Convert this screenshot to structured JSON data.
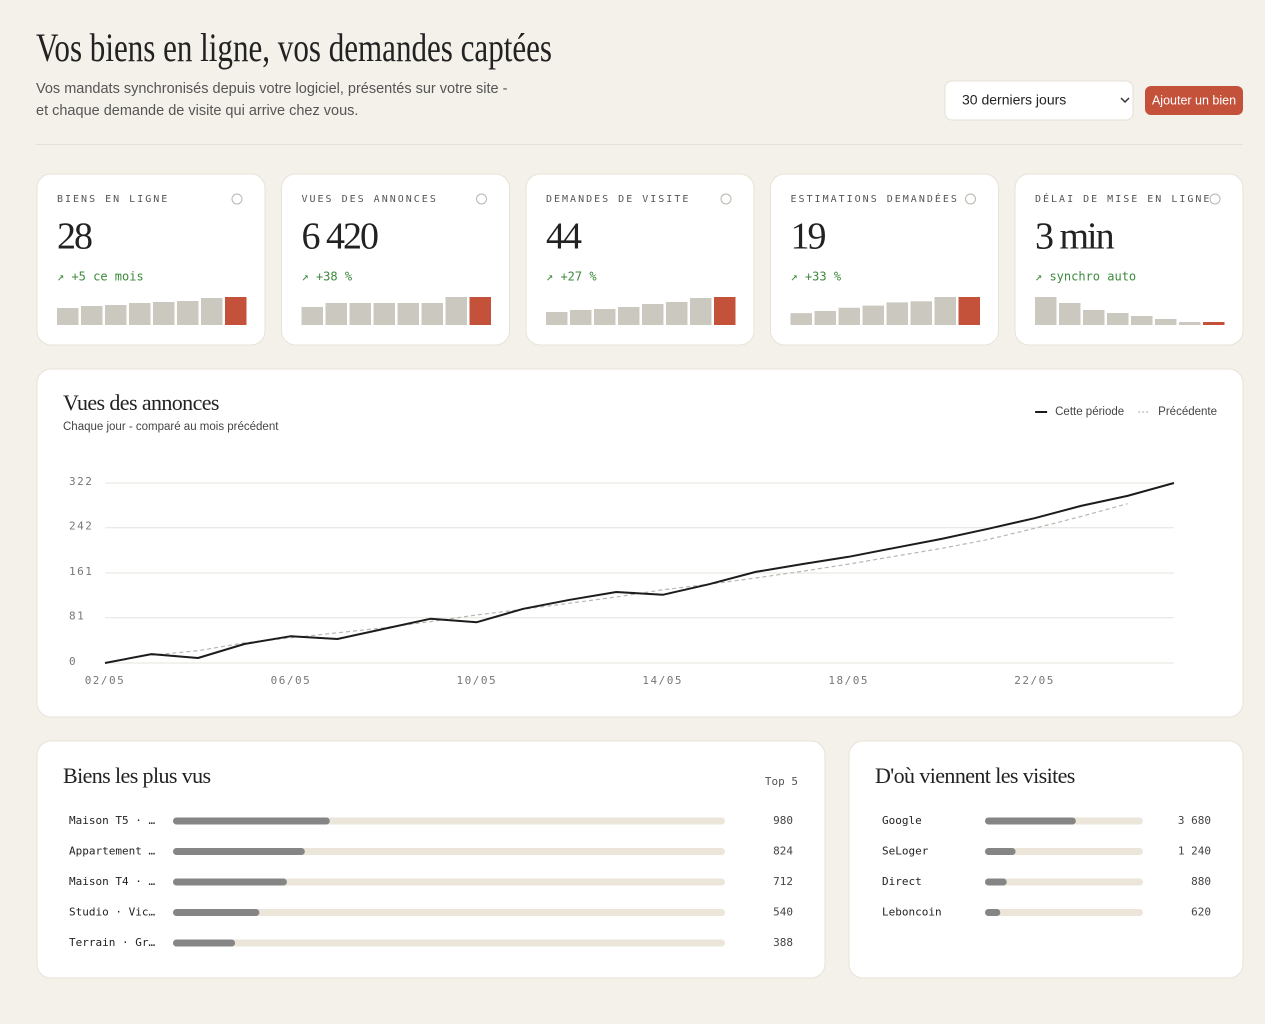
{
  "header": {
    "title": "Vos biens en ligne, vos demandes captées",
    "subtitle": "Vos mandats synchronisés depuis votre logiciel, présentés sur votre site - et chaque demande de visite qui arrive chez vous.",
    "period": "30 derniers jours",
    "button": "Ajouter un bien"
  },
  "kpis": [
    {
      "label": "BIENS EN LIGNE",
      "value": "28",
      "delta": "↗ +5 ce mois",
      "spark": [
        17,
        19,
        20,
        22,
        23,
        24,
        27,
        28
      ]
    },
    {
      "label": "VUES DES ANNONCES",
      "value": "6 420",
      "delta": "↗ +38 %",
      "spark": [
        18,
        22,
        22,
        22,
        22,
        22,
        28,
        28
      ]
    },
    {
      "label": "DEMANDES DE VISITE",
      "value": "44",
      "delta": "↗ +27 %",
      "spark": [
        13,
        15,
        16,
        18,
        21,
        23,
        27,
        28
      ]
    },
    {
      "label": "ESTIMATIONS DEMANDÉES",
      "value": "19",
      "delta": "↗ +33 %",
      "spark": [
        11,
        13,
        16,
        18,
        21,
        22,
        26,
        26
      ]
    },
    {
      "label": "DÉLAI DE MISE EN LIGNE",
      "value": "3 min",
      "delta": "↗ synchro auto",
      "spark": [
        28,
        22,
        15,
        12,
        9,
        6,
        3,
        3
      ]
    }
  ],
  "chart_data": [
    {
      "type": "line",
      "title": "Vues des annonces",
      "subtitle": "Chaque jour - comparé au mois précédent",
      "categories": [
        "02/05",
        null,
        null,
        null,
        "06/05",
        null,
        null,
        null,
        "10/05",
        null,
        null,
        null,
        "14/05",
        null,
        null,
        null,
        "18/05",
        null,
        null,
        null,
        "22/05",
        null,
        null,
        null
      ],
      "series": [
        {
          "name": "Cette période",
          "color": "#1c1c1c",
          "dashed": false,
          "values": [
            0,
            16,
            9,
            34,
            48,
            43,
            61,
            79,
            73,
            97,
            113,
            127,
            122,
            141,
            163,
            177,
            190,
            206,
            222,
            240,
            259,
            281,
            299,
            322
          ]
        },
        {
          "name": "Précédente",
          "color": "#b8b6b0",
          "dashed": true,
          "values": [
            null,
            14,
            22,
            36,
            45,
            54,
            63,
            74,
            86,
            96,
            107,
            118,
            131,
            141,
            152,
            164,
            177,
            191,
            205,
            221,
            241,
            262,
            285,
            null
          ]
        }
      ],
      "ylim": [
        0,
        322
      ],
      "yticks": [
        0,
        81,
        161,
        242,
        322
      ],
      "grid": true,
      "legend": "top-right"
    },
    {
      "type": "hbar",
      "title": "Biens les plus vus",
      "badge": "Top 5",
      "categories": [
        "Maison T5 · …",
        "Appartement …",
        "Maison T4 · …",
        "Studio · Vic…",
        "Terrain · Gr…"
      ],
      "values": [
        980,
        824,
        712,
        540,
        388
      ],
      "xlim": [
        0,
        3450
      ],
      "color": "#858585"
    },
    {
      "type": "hbar",
      "title": "D'où viennent les visites",
      "categories": [
        "Google",
        "SeLoger",
        "Direct",
        "Leboncoin"
      ],
      "values": [
        3680,
        1240,
        880,
        620
      ],
      "value_labels": [
        "3 680",
        "1 240",
        "880",
        "620"
      ],
      "xlim": [
        0,
        6400
      ],
      "color": "#858585"
    }
  ]
}
